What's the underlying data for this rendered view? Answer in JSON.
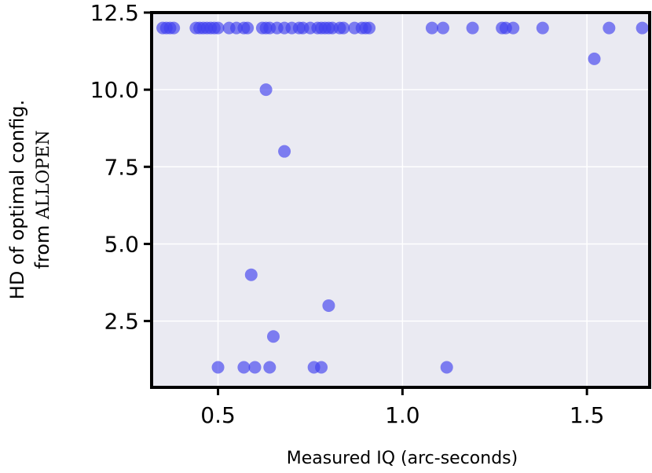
{
  "chart_data": {
    "type": "scatter",
    "xlabel": "Measured IQ (arc-seconds)",
    "ylabel_line1": "HD of optimal config.",
    "ylabel_line2_prefix": "from ",
    "ylabel_line2_name": "ALLOPEN",
    "xlim": [
      0.32,
      1.67
    ],
    "ylim": [
      0.35,
      12.5
    ],
    "x_ticks": [
      0.5,
      1.0,
      1.5
    ],
    "x_tick_labels": [
      "0.5",
      "1.0",
      "1.5"
    ],
    "y_ticks": [
      2.5,
      5.0,
      7.5,
      10.0,
      12.5
    ],
    "y_tick_labels": [
      "2.5",
      "5.0",
      "7.5",
      "10.0",
      "12.5"
    ],
    "grid": true,
    "colors": {
      "plot_background": "#eaeaf2",
      "grid": "#ffffff",
      "marker": "#4040ee",
      "frame": "#000000"
    },
    "points": [
      {
        "x": 0.35,
        "y": 12
      },
      {
        "x": 0.36,
        "y": 12
      },
      {
        "x": 0.37,
        "y": 12
      },
      {
        "x": 0.38,
        "y": 12
      },
      {
        "x": 0.44,
        "y": 12
      },
      {
        "x": 0.45,
        "y": 12
      },
      {
        "x": 0.46,
        "y": 12
      },
      {
        "x": 0.47,
        "y": 12
      },
      {
        "x": 0.48,
        "y": 12
      },
      {
        "x": 0.49,
        "y": 12
      },
      {
        "x": 0.5,
        "y": 12
      },
      {
        "x": 0.53,
        "y": 12
      },
      {
        "x": 0.55,
        "y": 12
      },
      {
        "x": 0.57,
        "y": 12
      },
      {
        "x": 0.58,
        "y": 12
      },
      {
        "x": 0.62,
        "y": 12
      },
      {
        "x": 0.63,
        "y": 12
      },
      {
        "x": 0.64,
        "y": 12
      },
      {
        "x": 0.66,
        "y": 12
      },
      {
        "x": 0.68,
        "y": 12
      },
      {
        "x": 0.7,
        "y": 12
      },
      {
        "x": 0.72,
        "y": 12
      },
      {
        "x": 0.73,
        "y": 12
      },
      {
        "x": 0.75,
        "y": 12
      },
      {
        "x": 0.77,
        "y": 12
      },
      {
        "x": 0.78,
        "y": 12
      },
      {
        "x": 0.79,
        "y": 12
      },
      {
        "x": 0.8,
        "y": 12
      },
      {
        "x": 0.81,
        "y": 12
      },
      {
        "x": 0.83,
        "y": 12
      },
      {
        "x": 0.84,
        "y": 12
      },
      {
        "x": 0.87,
        "y": 12
      },
      {
        "x": 0.89,
        "y": 12
      },
      {
        "x": 0.9,
        "y": 12
      },
      {
        "x": 0.91,
        "y": 12
      },
      {
        "x": 1.08,
        "y": 12
      },
      {
        "x": 1.11,
        "y": 12
      },
      {
        "x": 1.19,
        "y": 12
      },
      {
        "x": 1.27,
        "y": 12
      },
      {
        "x": 1.28,
        "y": 12
      },
      {
        "x": 1.3,
        "y": 12
      },
      {
        "x": 1.38,
        "y": 12
      },
      {
        "x": 1.56,
        "y": 12
      },
      {
        "x": 1.65,
        "y": 12
      },
      {
        "x": 1.52,
        "y": 11
      },
      {
        "x": 0.63,
        "y": 10
      },
      {
        "x": 0.68,
        "y": 8
      },
      {
        "x": 0.59,
        "y": 4
      },
      {
        "x": 0.8,
        "y": 3
      },
      {
        "x": 0.65,
        "y": 2
      },
      {
        "x": 0.5,
        "y": 1
      },
      {
        "x": 0.57,
        "y": 1
      },
      {
        "x": 0.6,
        "y": 1
      },
      {
        "x": 0.64,
        "y": 1
      },
      {
        "x": 0.76,
        "y": 1
      },
      {
        "x": 0.78,
        "y": 1
      },
      {
        "x": 1.12,
        "y": 1
      }
    ]
  }
}
